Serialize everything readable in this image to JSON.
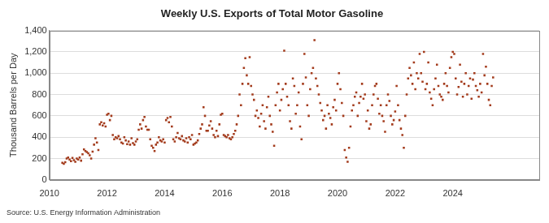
{
  "chart_data": {
    "type": "scatter",
    "title": "Weekly U.S. Exports of Total Motor Gasoline",
    "y_label": "Thousand Barrels per Day",
    "source": "Source: U.S. Energy Information Administration",
    "color": "#a33b1c",
    "marker": "square",
    "grid": true,
    "xlim": [
      2010,
      2027
    ],
    "xticks": [
      2010,
      2012,
      2014,
      2016,
      2018,
      2020,
      2022,
      2024
    ],
    "ylim": [
      0,
      1400
    ],
    "yticks": [
      0,
      200,
      400,
      600,
      800,
      {
        "value": 1000,
        "label": "1,000"
      },
      {
        "value": 1200,
        "label": "1,200"
      },
      {
        "value": 1400,
        "label": "1,400"
      }
    ],
    "x": [
      2010.45,
      2010.5,
      2010.55,
      2010.6,
      2010.65,
      2010.7,
      2010.75,
      2010.8,
      2010.85,
      2010.9,
      2010.95,
      2011.0,
      2011.05,
      2011.1,
      2011.15,
      2011.2,
      2011.25,
      2011.3,
      2011.35,
      2011.4,
      2011.45,
      2011.5,
      2011.55,
      2011.6,
      2011.65,
      2011.7,
      2011.75,
      2011.8,
      2011.85,
      2011.9,
      2011.95,
      2012.0,
      2012.05,
      2012.1,
      2012.15,
      2012.2,
      2012.25,
      2012.3,
      2012.35,
      2012.4,
      2012.45,
      2012.5,
      2012.55,
      2012.6,
      2012.65,
      2012.7,
      2012.75,
      2012.8,
      2012.85,
      2012.9,
      2012.95,
      2013.0,
      2013.05,
      2013.1,
      2013.15,
      2013.2,
      2013.25,
      2013.3,
      2013.35,
      2013.4,
      2013.45,
      2013.5,
      2013.55,
      2013.6,
      2013.65,
      2013.7,
      2013.75,
      2013.8,
      2013.85,
      2013.9,
      2013.95,
      2014.0,
      2014.05,
      2014.1,
      2014.15,
      2014.2,
      2014.25,
      2014.3,
      2014.35,
      2014.4,
      2014.45,
      2014.5,
      2014.55,
      2014.6,
      2014.65,
      2014.7,
      2014.75,
      2014.8,
      2014.85,
      2014.9,
      2014.95,
      2015.0,
      2015.05,
      2015.1,
      2015.15,
      2015.2,
      2015.25,
      2015.3,
      2015.35,
      2015.4,
      2015.45,
      2015.5,
      2015.55,
      2015.6,
      2015.65,
      2015.7,
      2015.75,
      2015.8,
      2015.85,
      2015.9,
      2015.95,
      2016.0,
      2016.05,
      2016.1,
      2016.15,
      2016.2,
      2016.25,
      2016.3,
      2016.35,
      2016.4,
      2016.45,
      2016.5,
      2016.55,
      2016.6,
      2016.65,
      2016.7,
      2016.75,
      2016.8,
      2016.85,
      2016.9,
      2016.95,
      2017.0,
      2017.05,
      2017.1,
      2017.15,
      2017.2,
      2017.25,
      2017.3,
      2017.35,
      2017.4,
      2017.45,
      2017.5,
      2017.55,
      2017.6,
      2017.65,
      2017.7,
      2017.75,
      2017.8,
      2017.85,
      2017.9,
      2017.95,
      2018.0,
      2018.05,
      2018.1,
      2018.15,
      2018.2,
      2018.25,
      2018.3,
      2018.35,
      2018.4,
      2018.45,
      2018.5,
      2018.55,
      2018.6,
      2018.65,
      2018.7,
      2018.75,
      2018.8,
      2018.85,
      2018.9,
      2018.95,
      2019.0,
      2019.05,
      2019.1,
      2019.15,
      2019.2,
      2019.25,
      2019.3,
      2019.35,
      2019.4,
      2019.45,
      2019.5,
      2019.55,
      2019.6,
      2019.65,
      2019.7,
      2019.75,
      2019.8,
      2019.85,
      2019.9,
      2019.95,
      2020.0,
      2020.05,
      2020.1,
      2020.15,
      2020.2,
      2020.25,
      2020.3,
      2020.35,
      2020.4,
      2020.45,
      2020.5,
      2020.55,
      2020.6,
      2020.65,
      2020.7,
      2020.75,
      2020.8,
      2020.85,
      2020.9,
      2020.95,
      2021.0,
      2021.05,
      2021.1,
      2021.15,
      2021.2,
      2021.25,
      2021.3,
      2021.35,
      2021.4,
      2021.45,
      2021.5,
      2021.55,
      2021.6,
      2021.65,
      2021.7,
      2021.75,
      2021.8,
      2021.85,
      2021.9,
      2021.95,
      2022.0,
      2022.05,
      2022.1,
      2022.15,
      2022.2,
      2022.25,
      2022.3,
      2022.35,
      2022.4,
      2022.45,
      2022.5,
      2022.55,
      2022.6,
      2022.65,
      2022.7,
      2022.75,
      2022.8,
      2022.85,
      2022.9,
      2022.95,
      2023.0,
      2023.05,
      2023.1,
      2023.15,
      2023.2,
      2023.25,
      2023.3,
      2023.35,
      2023.4,
      2023.45,
      2023.5,
      2023.55,
      2023.6,
      2023.65,
      2023.7,
      2023.75,
      2023.8,
      2023.85,
      2023.9,
      2023.95,
      2024.0,
      2024.05,
      2024.1,
      2024.15,
      2024.2,
      2024.25,
      2024.3,
      2024.35,
      2024.4,
      2024.45,
      2024.5,
      2024.55,
      2024.6,
      2024.65,
      2024.7,
      2024.75,
      2024.8,
      2024.85,
      2024.9,
      2024.95,
      2025.0,
      2025.05,
      2025.1,
      2025.15,
      2025.2,
      2025.25,
      2025.3,
      2025.35,
      2025.4
    ],
    "values": [
      160,
      150,
      165,
      200,
      210,
      190,
      175,
      205,
      185,
      170,
      200,
      190,
      210,
      180,
      240,
      285,
      270,
      260,
      250,
      230,
      200,
      265,
      330,
      390,
      350,
      280,
      520,
      540,
      510,
      530,
      500,
      610,
      620,
      560,
      600,
      420,
      380,
      400,
      390,
      410,
      380,
      350,
      340,
      400,
      370,
      335,
      360,
      330,
      390,
      345,
      330,
      360,
      380,
      470,
      520,
      480,
      560,
      590,
      500,
      470,
      470,
      380,
      320,
      300,
      270,
      330,
      350,
      400,
      370,
      360,
      380,
      350,
      560,
      580,
      540,
      590,
      500,
      380,
      360,
      400,
      440,
      390,
      380,
      410,
      370,
      360,
      390,
      350,
      400,
      380,
      420,
      330,
      340,
      350,
      370,
      430,
      480,
      520,
      680,
      600,
      460,
      460,
      510,
      550,
      480,
      420,
      400,
      460,
      410,
      520,
      610,
      620,
      420,
      410,
      400,
      420,
      390,
      380,
      400,
      430,
      460,
      520,
      600,
      800,
      700,
      900,
      1050,
      1140,
      980,
      900,
      1150,
      880,
      800,
      750,
      600,
      650,
      580,
      500,
      620,
      700,
      550,
      480,
      680,
      780,
      600,
      520,
      450,
      320,
      700,
      820,
      900,
      650,
      750,
      850,
      1210,
      900,
      780,
      700,
      550,
      480,
      950,
      880,
      620,
      700,
      820,
      500,
      380,
      900,
      1180,
      960,
      700,
      600,
      850,
      1000,
      1050,
      1310,
      950,
      880,
      800,
      720,
      650,
      560,
      600,
      480,
      700,
      620,
      580,
      520,
      680,
      750,
      650,
      900,
      1000,
      850,
      720,
      600,
      280,
      210,
      170,
      300,
      500,
      650,
      700,
      780,
      820,
      600,
      720,
      780,
      900,
      760,
      800,
      550,
      650,
      480,
      520,
      700,
      800,
      880,
      900,
      760,
      620,
      700,
      600,
      550,
      450,
      700,
      800,
      740,
      600,
      520,
      560,
      640,
      880,
      700,
      560,
      480,
      420,
      300,
      600,
      800,
      950,
      1050,
      980,
      900,
      1100,
      850,
      1000,
      950,
      1180,
      1000,
      920,
      1200,
      850,
      900,
      1100,
      820,
      760,
      700,
      850,
      950,
      1080,
      880,
      800,
      780,
      750,
      900,
      1000,
      880,
      820,
      1050,
      1150,
      1200,
      1180,
      950,
      800,
      870,
      1080,
      920,
      780,
      900,
      1000,
      800,
      880,
      950,
      760,
      940,
      1000,
      880,
      840,
      780,
      900,
      820,
      1180,
      980,
      1060,
      900,
      750,
      700,
      880,
      960
    ]
  }
}
